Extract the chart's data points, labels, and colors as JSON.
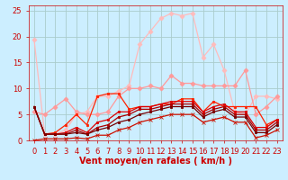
{
  "xlabel": "Vent moyen/en rafales ( km/h )",
  "bg_color": "#cceeff",
  "grid_color": "#aacccc",
  "xlim": [
    -0.5,
    23.5
  ],
  "ylim": [
    0,
    26
  ],
  "yticks": [
    0,
    5,
    10,
    15,
    20,
    25
  ],
  "xticks": [
    0,
    1,
    2,
    3,
    4,
    5,
    6,
    7,
    8,
    9,
    10,
    11,
    12,
    13,
    14,
    15,
    16,
    17,
    18,
    19,
    20,
    21,
    22,
    23
  ],
  "series": [
    {
      "x": [
        0,
        1,
        2,
        3,
        4,
        5,
        6,
        7,
        8,
        9,
        10,
        11,
        12,
        13,
        14,
        15,
        16,
        17,
        18,
        19,
        20,
        21,
        22,
        23
      ],
      "y": [
        19.5,
        1.2,
        1.2,
        2.0,
        5.0,
        5.5,
        8.5,
        8.5,
        9.5,
        10.5,
        18.5,
        21.0,
        23.5,
        24.5,
        24.0,
        24.5,
        16.0,
        18.5,
        13.5,
        5.5,
        5.0,
        8.5,
        8.5,
        8.0
      ],
      "color": "#ffbbbb",
      "marker": "D",
      "markersize": 2.5,
      "linewidth": 0.9
    },
    {
      "x": [
        0,
        1,
        2,
        3,
        4,
        5,
        6,
        7,
        8,
        9,
        10,
        11,
        12,
        13,
        14,
        15,
        16,
        17,
        18,
        19,
        20,
        21,
        22,
        23
      ],
      "y": [
        5.5,
        5.0,
        6.5,
        8.0,
        5.5,
        5.0,
        5.0,
        5.5,
        8.5,
        10.0,
        10.0,
        10.5,
        10.0,
        12.5,
        11.0,
        11.0,
        10.5,
        10.5,
        10.5,
        10.5,
        13.5,
        5.0,
        6.5,
        8.5
      ],
      "color": "#ff9999",
      "marker": "D",
      "markersize": 2.5,
      "linewidth": 0.9
    },
    {
      "x": [
        0,
        1,
        2,
        3,
        4,
        5,
        6,
        7,
        8,
        9,
        10,
        11,
        12,
        13,
        14,
        15,
        16,
        17,
        18,
        19,
        20,
        21,
        22,
        23
      ],
      "y": [
        6.5,
        1.2,
        1.5,
        3.0,
        5.0,
        3.0,
        8.5,
        9.0,
        9.0,
        6.0,
        6.5,
        6.5,
        7.0,
        7.0,
        8.0,
        8.0,
        5.5,
        7.5,
        6.5,
        6.5,
        6.5,
        6.5,
        3.0,
        4.0
      ],
      "color": "#ff2200",
      "marker": "s",
      "markersize": 2,
      "linewidth": 0.9
    },
    {
      "x": [
        0,
        1,
        2,
        3,
        4,
        5,
        6,
        7,
        8,
        9,
        10,
        11,
        12,
        13,
        14,
        15,
        16,
        17,
        18,
        19,
        20,
        21,
        22,
        23
      ],
      "y": [
        6.5,
        1.2,
        1.2,
        1.5,
        2.5,
        1.5,
        3.5,
        4.0,
        5.5,
        5.5,
        6.5,
        6.5,
        7.0,
        7.5,
        7.5,
        7.5,
        5.5,
        6.5,
        7.0,
        5.5,
        5.5,
        2.5,
        2.5,
        4.0
      ],
      "color": "#dd0000",
      "marker": "s",
      "markersize": 2,
      "linewidth": 0.9
    },
    {
      "x": [
        0,
        1,
        2,
        3,
        4,
        5,
        6,
        7,
        8,
        9,
        10,
        11,
        12,
        13,
        14,
        15,
        16,
        17,
        18,
        19,
        20,
        21,
        22,
        23
      ],
      "y": [
        6.5,
        1.2,
        1.2,
        1.2,
        2.0,
        1.2,
        2.5,
        3.0,
        4.5,
        5.0,
        6.0,
        6.0,
        6.5,
        7.0,
        7.0,
        7.0,
        5.0,
        6.0,
        6.5,
        5.0,
        5.0,
        2.0,
        2.0,
        3.5
      ],
      "color": "#aa0000",
      "marker": "s",
      "markersize": 2,
      "linewidth": 0.9
    },
    {
      "x": [
        0,
        1,
        2,
        3,
        4,
        5,
        6,
        7,
        8,
        9,
        10,
        11,
        12,
        13,
        14,
        15,
        16,
        17,
        18,
        19,
        20,
        21,
        22,
        23
      ],
      "y": [
        6.5,
        1.2,
        1.2,
        1.2,
        1.5,
        1.2,
        2.0,
        2.5,
        3.5,
        4.0,
        5.0,
        5.5,
        6.0,
        6.5,
        6.5,
        6.5,
        4.5,
        5.5,
        6.0,
        4.5,
        4.5,
        1.5,
        1.5,
        3.0
      ],
      "color": "#770000",
      "marker": "s",
      "markersize": 2,
      "linewidth": 0.9
    },
    {
      "x": [
        0,
        1,
        2,
        3,
        4,
        5,
        6,
        7,
        8,
        9,
        10,
        11,
        12,
        13,
        14,
        15,
        16,
        17,
        18,
        19,
        20,
        21,
        22,
        23
      ],
      "y": [
        0.0,
        0.3,
        0.3,
        0.3,
        0.5,
        0.3,
        1.0,
        1.0,
        2.0,
        2.5,
        3.5,
        4.0,
        4.5,
        5.0,
        5.0,
        5.0,
        3.5,
        4.0,
        4.5,
        3.5,
        3.5,
        0.5,
        1.0,
        2.0
      ],
      "color": "#cc1100",
      "marker": "x",
      "markersize": 2.5,
      "linewidth": 0.9
    }
  ],
  "xlabel_fontsize": 7,
  "tick_fontsize": 6,
  "xlabel_color": "#cc0000",
  "tick_color": "#cc0000"
}
